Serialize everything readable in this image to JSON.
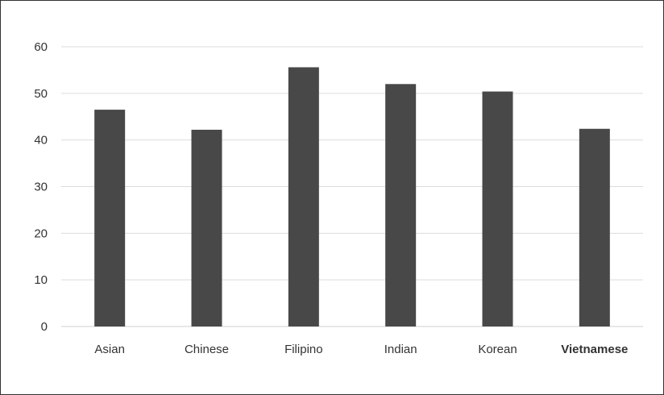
{
  "chart_data": {
    "type": "bar",
    "categories": [
      "Asian",
      "Chinese",
      "Filipino",
      "Indian",
      "Korean",
      "Vietnamese"
    ],
    "values": [
      46.5,
      42.2,
      55.6,
      52.0,
      50.4,
      42.4
    ],
    "ylim": [
      0,
      60
    ],
    "yticks": [
      0,
      10,
      20,
      30,
      40,
      50,
      60
    ],
    "title": "",
    "xlabel": "",
    "ylabel": "",
    "grid": true,
    "legend": "none",
    "colors": {
      "bar": "#484848",
      "grid": "#dcdcdc",
      "text": "#333333"
    }
  }
}
